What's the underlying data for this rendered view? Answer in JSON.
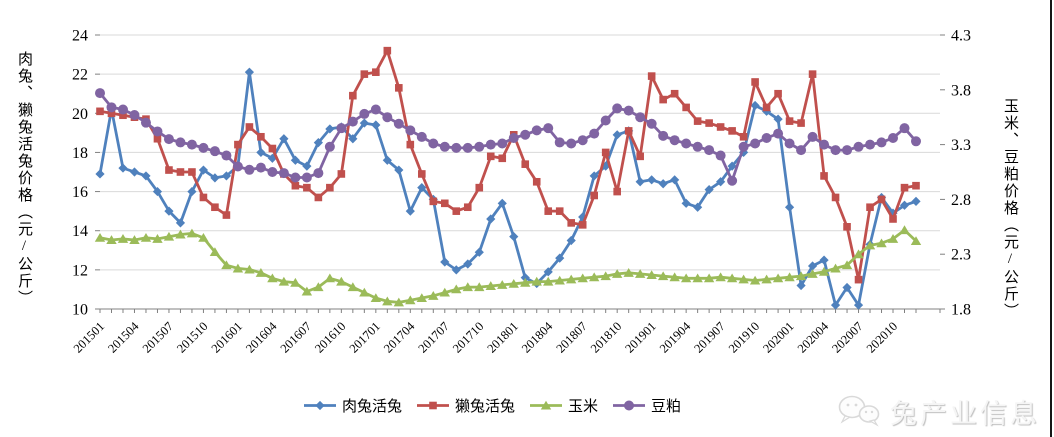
{
  "chart_data": {
    "type": "line",
    "title": "",
    "grid": true,
    "legend_position": "bottom",
    "left_axis": {
      "title": "肉兔、獭兔活兔价格（元/公斤）",
      "min": 10,
      "max": 24,
      "tick_values": [
        24,
        22,
        20,
        18,
        16,
        14,
        12,
        10
      ],
      "tick_labels": [
        "24",
        "22",
        "20",
        "18",
        "16",
        "14",
        "12",
        "10"
      ]
    },
    "right_axis": {
      "title": "玉米、豆粕价格（元/公斤）",
      "min": 1.8,
      "max": 4.3,
      "tick_values": [
        4.3,
        3.8,
        3.3,
        2.8,
        2.3,
        1.8
      ],
      "tick_labels": [
        "4.3",
        "3.8",
        "3.3",
        "2.8",
        "2.3",
        "1.8"
      ]
    },
    "x_axis": {
      "months_total": 72,
      "label_every": 3,
      "tick_labels": [
        "201501",
        "201504",
        "201507",
        "201510",
        "201601",
        "201604",
        "201607",
        "201610",
        "201701",
        "201704",
        "201707",
        "201710",
        "201801",
        "201804",
        "201807",
        "201810",
        "201901",
        "201904",
        "201907",
        "201910",
        "202001",
        "202004",
        "202007",
        "202010"
      ]
    },
    "series": [
      {
        "name": "肉兔活兔",
        "axis": "left",
        "color": "#4F81BD",
        "marker": "diamond",
        "values": [
          16.9,
          20.2,
          17.2,
          17.0,
          16.8,
          16.0,
          15.0,
          14.4,
          16.0,
          17.1,
          16.7,
          16.8,
          17.3,
          22.1,
          18.0,
          17.7,
          18.7,
          17.6,
          17.3,
          18.5,
          19.2,
          19.3,
          18.7,
          19.5,
          19.4,
          17.6,
          17.1,
          15.0,
          16.2,
          15.6,
          12.4,
          12.0,
          12.3,
          12.9,
          14.6,
          15.4,
          13.7,
          11.6,
          11.3,
          11.9,
          12.6,
          13.5,
          14.7,
          16.8,
          17.3,
          18.9,
          19.1,
          16.5,
          16.6,
          16.4,
          16.6,
          15.4,
          15.2,
          16.1,
          16.5,
          17.3,
          18.0,
          20.4,
          20.1,
          19.7,
          15.2,
          11.2,
          12.2,
          12.5,
          10.2,
          11.1,
          10.2,
          13.3,
          15.7,
          14.9,
          15.3,
          15.5
        ]
      },
      {
        "name": "獭兔活兔",
        "axis": "left",
        "color": "#C0504D",
        "marker": "square",
        "values": [
          20.1,
          20.0,
          19.9,
          19.8,
          19.7,
          18.7,
          17.1,
          17.0,
          17.0,
          15.7,
          15.2,
          14.8,
          18.4,
          19.3,
          18.8,
          18.2,
          16.9,
          16.3,
          16.2,
          15.7,
          16.2,
          16.9,
          20.9,
          22.0,
          22.1,
          23.2,
          21.3,
          18.4,
          16.9,
          15.5,
          15.4,
          15.0,
          15.2,
          16.2,
          17.8,
          17.7,
          18.9,
          17.4,
          16.5,
          15.0,
          15.0,
          14.4,
          14.3,
          15.8,
          18.0,
          16.0,
          19.1,
          17.8,
          21.9,
          20.7,
          21.0,
          20.3,
          19.6,
          19.5,
          19.3,
          19.1,
          18.8,
          21.6,
          20.3,
          21.0,
          19.6,
          19.5,
          22.0,
          16.8,
          15.7,
          14.2,
          11.5,
          15.2,
          15.6,
          14.6,
          16.2,
          16.3
        ]
      },
      {
        "name": "玉米",
        "axis": "right",
        "color": "#9BBB59",
        "marker": "triangle",
        "values": [
          2.45,
          2.43,
          2.44,
          2.43,
          2.45,
          2.44,
          2.46,
          2.48,
          2.49,
          2.45,
          2.32,
          2.2,
          2.17,
          2.16,
          2.13,
          2.08,
          2.05,
          2.04,
          1.96,
          2.0,
          2.08,
          2.05,
          2.0,
          1.95,
          1.9,
          1.87,
          1.86,
          1.88,
          1.9,
          1.92,
          1.95,
          1.98,
          2.0,
          2.0,
          2.01,
          2.02,
          2.03,
          2.04,
          2.05,
          2.05,
          2.06,
          2.07,
          2.08,
          2.09,
          2.1,
          2.12,
          2.13,
          2.12,
          2.11,
          2.1,
          2.09,
          2.08,
          2.08,
          2.08,
          2.09,
          2.08,
          2.07,
          2.06,
          2.07,
          2.08,
          2.09,
          2.1,
          2.12,
          2.14,
          2.17,
          2.2,
          2.3,
          2.38,
          2.4,
          2.44,
          2.52,
          2.42
        ]
      },
      {
        "name": "豆粕",
        "axis": "right",
        "color": "#8064A2",
        "marker": "circle",
        "values": [
          3.77,
          3.64,
          3.62,
          3.57,
          3.5,
          3.42,
          3.35,
          3.32,
          3.3,
          3.27,
          3.24,
          3.2,
          3.1,
          3.07,
          3.09,
          3.05,
          3.04,
          3.0,
          3.0,
          3.04,
          3.28,
          3.45,
          3.51,
          3.58,
          3.62,
          3.55,
          3.49,
          3.43,
          3.37,
          3.31,
          3.28,
          3.27,
          3.27,
          3.28,
          3.3,
          3.31,
          3.36,
          3.39,
          3.43,
          3.45,
          3.32,
          3.31,
          3.34,
          3.4,
          3.52,
          3.63,
          3.61,
          3.55,
          3.49,
          3.38,
          3.34,
          3.31,
          3.28,
          3.25,
          3.2,
          2.97,
          3.28,
          3.31,
          3.36,
          3.4,
          3.31,
          3.25,
          3.37,
          3.3,
          3.25,
          3.25,
          3.28,
          3.3,
          3.32,
          3.36,
          3.45,
          3.33
        ]
      }
    ]
  },
  "watermark": {
    "text": "兔产业信息",
    "icon": "wechat-icon"
  },
  "colors": {
    "gridline": "#D9D9D9",
    "axis_line": "#808080",
    "text": "#000000",
    "watermark_text": "#f5f5f5",
    "border_right": "#161616"
  }
}
